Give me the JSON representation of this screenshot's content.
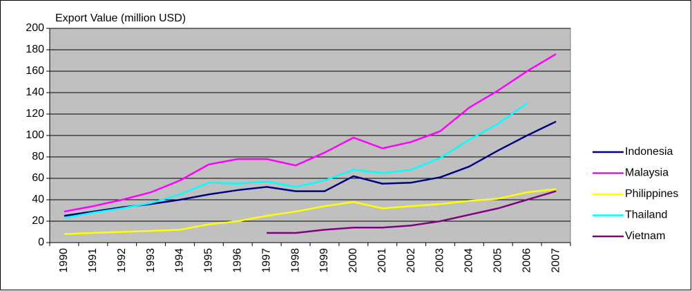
{
  "chart_data": {
    "type": "line",
    "title": "Export Value (million USD)",
    "categories": [
      "1990",
      "1991",
      "1992",
      "1993",
      "1994",
      "1995",
      "1996",
      "1997",
      "1998",
      "1999",
      "2000",
      "2001",
      "2002",
      "2003",
      "2004",
      "2005",
      "2006",
      "2007"
    ],
    "series": [
      {
        "name": "Indonesia",
        "color": "#000080",
        "values": [
          25,
          29,
          33,
          36,
          40,
          45,
          49,
          52,
          48,
          48,
          62,
          55,
          56,
          61,
          71,
          86,
          100,
          113
        ]
      },
      {
        "name": "Malaysia",
        "color": "#ff00ff",
        "values": [
          29,
          34,
          40,
          47,
          58,
          73,
          78,
          78,
          72,
          84,
          98,
          88,
          94,
          104,
          126,
          142,
          160,
          176
        ]
      },
      {
        "name": "Philippines",
        "color": "#ffff00",
        "values": [
          8,
          9,
          10,
          11,
          12,
          17,
          20,
          25,
          29,
          34,
          38,
          32,
          34,
          36,
          39,
          41,
          47,
          50
        ]
      },
      {
        "name": "Thailand",
        "color": "#00ffff",
        "values": [
          23,
          28,
          32,
          37,
          45,
          56,
          55,
          57,
          52,
          58,
          68,
          65,
          68,
          79,
          96,
          111,
          130,
          null
        ]
      },
      {
        "name": "Vietnam",
        "color": "#800080",
        "values": [
          null,
          null,
          null,
          null,
          null,
          null,
          null,
          9,
          9,
          12,
          14,
          14,
          16,
          20,
          26,
          32,
          40,
          48
        ]
      }
    ],
    "ylim": [
      0,
      200
    ],
    "yticks": [
      0,
      20,
      40,
      60,
      80,
      100,
      120,
      140,
      160,
      180,
      200
    ],
    "grid": true,
    "legend": "right"
  }
}
